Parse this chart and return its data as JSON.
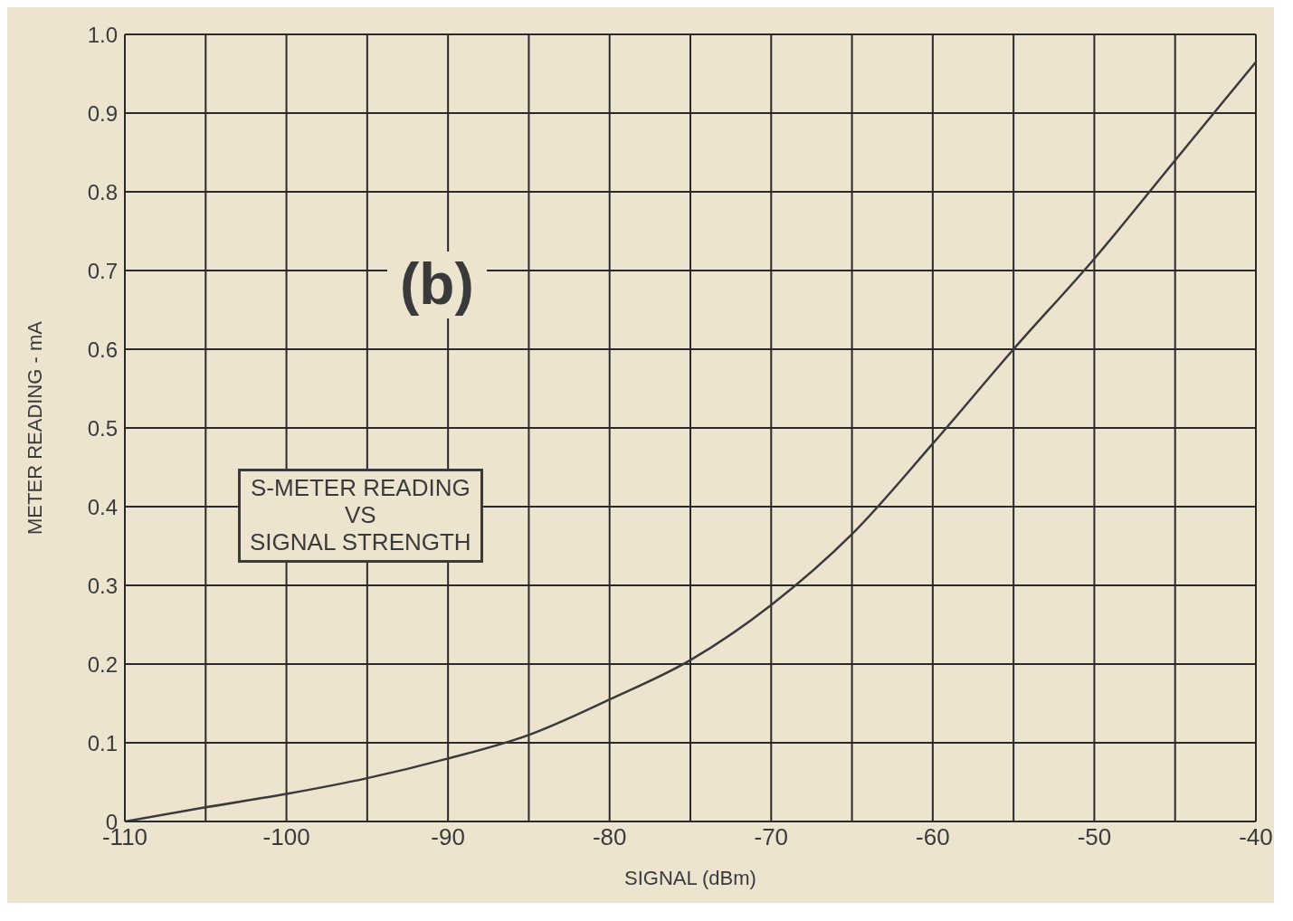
{
  "chart_data": {
    "type": "line",
    "xlabel": "SIGNAL (dBm)",
    "ylabel": "METER READING - mA",
    "annotations": [
      "(b)",
      "S-METER READING\nVS\nSIGNAL STRENGTH"
    ],
    "x": [
      -110,
      -105,
      -100,
      -95,
      -90,
      -85,
      -80,
      -75,
      -70,
      -65,
      -60,
      -55,
      -50,
      -45,
      -40
    ],
    "series": [
      {
        "color": "#3a3a3a",
        "values": [
          0,
          0.018,
          0.035,
          0.055,
          0.08,
          0.11,
          0.155,
          0.205,
          0.275,
          0.365,
          0.48,
          0.6,
          0.715,
          0.84,
          0.965
        ]
      }
    ],
    "xlim": [
      -110,
      -40
    ],
    "xticks": [
      -110,
      {
        "value": -105,
        "label": null
      },
      -100,
      {
        "value": -95,
        "label": null
      },
      -90,
      {
        "value": -85,
        "label": null
      },
      -80,
      {
        "value": -75,
        "label": null
      },
      -70,
      {
        "value": -65,
        "label": null
      },
      -60,
      {
        "value": -55,
        "label": null
      },
      -50,
      {
        "value": -45,
        "label": null
      },
      -40
    ],
    "ylim": [
      0,
      1
    ],
    "yticks": [
      0,
      0.1,
      0.2,
      0.3,
      0.4,
      0.5,
      0.6,
      0.7,
      0.8,
      0.9,
      {
        "value": 1,
        "label": "1.0"
      }
    ],
    "grid": true
  }
}
